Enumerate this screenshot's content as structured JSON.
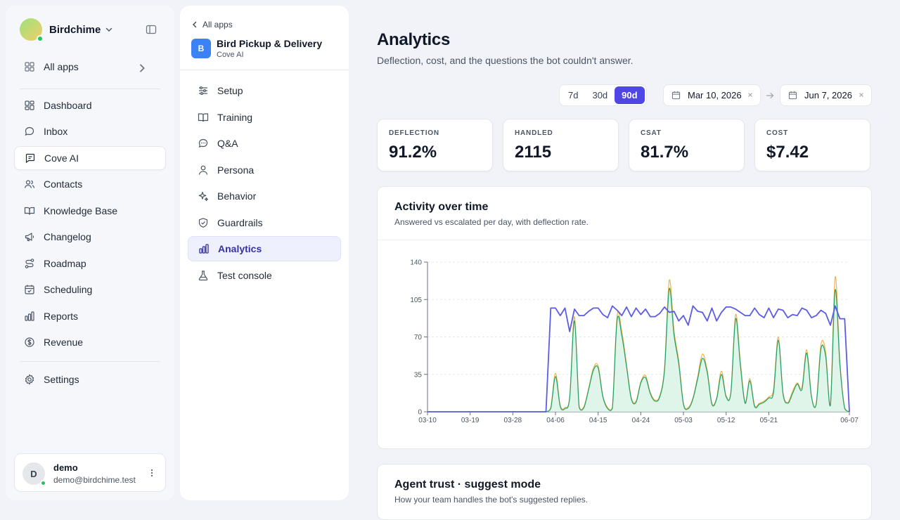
{
  "workspace": {
    "name": "Birdchime"
  },
  "sidebar": {
    "all_apps": "All apps",
    "items": [
      {
        "label": "Dashboard",
        "icon": "grid-icon"
      },
      {
        "label": "Inbox",
        "icon": "chat-bubble-icon"
      },
      {
        "label": "Cove AI",
        "icon": "message-square-icon"
      },
      {
        "label": "Contacts",
        "icon": "users-icon"
      },
      {
        "label": "Knowledge Base",
        "icon": "book-icon"
      },
      {
        "label": "Changelog",
        "icon": "megaphone-icon"
      },
      {
        "label": "Roadmap",
        "icon": "route-icon"
      },
      {
        "label": "Scheduling",
        "icon": "calendar-check-icon"
      },
      {
        "label": "Reports",
        "icon": "bar-chart-icon"
      },
      {
        "label": "Revenue",
        "icon": "dollar-circle-icon"
      }
    ],
    "active": "Cove AI",
    "settings": "Settings"
  },
  "user": {
    "initial": "D",
    "name": "demo",
    "email": "demo@birdchime.test"
  },
  "app_panel": {
    "back_label": "All apps",
    "app_initial": "B",
    "app_name": "Bird Pickup & Delivery",
    "app_sub": "Cove AI",
    "items": [
      {
        "label": "Setup",
        "icon": "sliders-icon"
      },
      {
        "label": "Training",
        "icon": "open-book-icon"
      },
      {
        "label": "Q&A",
        "icon": "chat-bubble-icon"
      },
      {
        "label": "Persona",
        "icon": "user-icon"
      },
      {
        "label": "Behavior",
        "icon": "sparkles-icon"
      },
      {
        "label": "Guardrails",
        "icon": "shield-check-icon"
      },
      {
        "label": "Analytics",
        "icon": "bar-chart-icon"
      },
      {
        "label": "Test console",
        "icon": "flask-icon"
      }
    ],
    "active": "Analytics"
  },
  "page": {
    "title": "Analytics",
    "subtitle": "Deflection, cost, and the questions the bot couldn't answer."
  },
  "range": {
    "options": [
      "7d",
      "30d",
      "90d"
    ],
    "selected": "90d"
  },
  "date_from": "Mar 10, 2026",
  "date_to": "Jun 7, 2026",
  "stats": [
    {
      "label": "DEFLECTION",
      "value": "91.2%"
    },
    {
      "label": "HANDLED",
      "value": "2115"
    },
    {
      "label": "CSAT",
      "value": "81.7%"
    },
    {
      "label": "COST",
      "value": "$7.42"
    }
  ],
  "activity_card": {
    "title": "Activity over time",
    "subtitle": "Answered vs escalated per day, with deflection rate."
  },
  "trust_card": {
    "title": "Agent trust · suggest mode",
    "subtitle": "How your team handles the bot's suggested replies."
  },
  "colors": {
    "accent": "#4f46e5",
    "answered": "#22a06b",
    "escalated": "#f0b541",
    "deflection": "#5b5ce6"
  },
  "chart_data": {
    "type": "line",
    "title": "Activity over time",
    "x_start": "03-10",
    "x_ticks": [
      "03-10",
      "03-19",
      "03-28",
      "04-06",
      "04-15",
      "04-24",
      "05-03",
      "05-12",
      "05-21",
      "06-07"
    ],
    "y_ticks": [
      0,
      35,
      70,
      105,
      140
    ],
    "ylim": [
      0,
      140
    ],
    "grid": true,
    "series": [
      {
        "name": "answered",
        "values": [
          0,
          0,
          0,
          0,
          0,
          0,
          0,
          0,
          0,
          0,
          0,
          0,
          0,
          0,
          0,
          0,
          0,
          0,
          0,
          0,
          0,
          0,
          0,
          0,
          0,
          0,
          3,
          33,
          5,
          3,
          13,
          85,
          4,
          4,
          21,
          39,
          41,
          14,
          3,
          3,
          86,
          71,
          42,
          12,
          9,
          27,
          32,
          17,
          10,
          14,
          39,
          115,
          72,
          45,
          7,
          3,
          12,
          31,
          50,
          37,
          7,
          12,
          35,
          14,
          18,
          87,
          44,
          8,
          29,
          5,
          7,
          9,
          13,
          18,
          67,
          17,
          8,
          17,
          26,
          21,
          55,
          14,
          7,
          59,
          52,
          6,
          114,
          44,
          3,
          0
        ],
        "color": "#22a06b"
      },
      {
        "name": "escalated",
        "values": [
          0,
          0,
          0,
          0,
          0,
          0,
          0,
          0,
          0,
          0,
          0,
          0,
          0,
          0,
          0,
          0,
          0,
          0,
          0,
          0,
          0,
          0,
          0,
          0,
          0,
          0,
          1,
          3,
          1,
          1,
          1,
          4,
          1,
          1,
          1,
          2,
          2,
          1,
          1,
          1,
          4,
          4,
          2,
          1,
          1,
          1,
          2,
          1,
          1,
          1,
          2,
          8,
          4,
          3,
          1,
          1,
          1,
          2,
          4,
          2,
          1,
          1,
          3,
          1,
          1,
          4,
          3,
          1,
          2,
          1,
          1,
          1,
          1,
          3,
          3,
          1,
          1,
          2,
          1,
          2,
          3,
          1,
          1,
          4,
          4,
          1,
          12,
          3,
          1,
          0
        ]
      },
      {
        "name": "deflection",
        "values": [
          0,
          0,
          0,
          0,
          0,
          0,
          0,
          0,
          0,
          0,
          0,
          0,
          0,
          0,
          0,
          0,
          0,
          0,
          0,
          0,
          0,
          0,
          0,
          0,
          0,
          0,
          97,
          97,
          90,
          97,
          75,
          96,
          90,
          90,
          94,
          97,
          97,
          91,
          88,
          99,
          95,
          90,
          98,
          89,
          97,
          91,
          96,
          89,
          89,
          92,
          98,
          93,
          94,
          85,
          90,
          81,
          99,
          94,
          93,
          85,
          97,
          85,
          93,
          98,
          98,
          96,
          93,
          90,
          90,
          97,
          91,
          88,
          97,
          88,
          96,
          95,
          88,
          91,
          90,
          97,
          95,
          88,
          90,
          95,
          92,
          81,
          99,
          87,
          87,
          0
        ],
        "color": "#5b5ce6"
      }
    ]
  }
}
